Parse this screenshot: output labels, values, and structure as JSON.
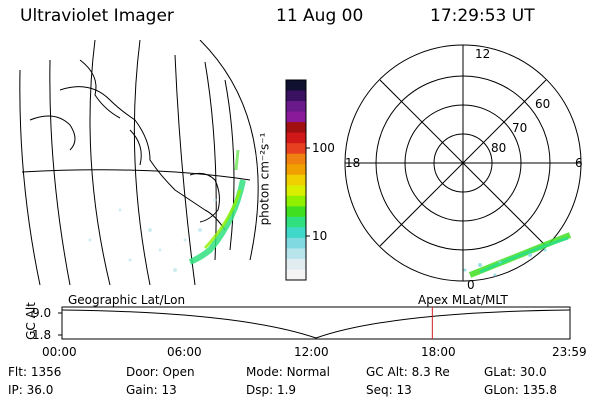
{
  "header": {
    "instrument": "Ultraviolet Imager",
    "date": "11 Aug 00",
    "time": "17:29:53 UT"
  },
  "colorbar": {
    "unit": "photon cm⁻²s⁻¹",
    "tick_labels": [
      "100",
      "10"
    ],
    "colors": [
      "#101030",
      "#3a1060",
      "#6a1a8a",
      "#8a1a9a",
      "#a01010",
      "#d01818",
      "#e64020",
      "#f08010",
      "#f0a000",
      "#f0d000",
      "#d8f000",
      "#90f000",
      "#40e020",
      "#30e080",
      "#40d8c8",
      "#80d8e0",
      "#b8e4ec",
      "#e0ecf0",
      "#f4f4f4"
    ]
  },
  "polar_plot": {
    "mlt_labels": {
      "top": "12",
      "left": "18",
      "right": "6",
      "bottom": "0"
    },
    "mlat_labels": [
      "60",
      "70",
      "80"
    ]
  },
  "timeline": {
    "ylabel": "GC Alt",
    "y_ticks": [
      "9.0",
      "1.8"
    ],
    "left_caption": "Geographic Lat/Lon",
    "right_caption": "Apex MLat/MLT",
    "x_ticks": [
      "00:00",
      "06:00",
      "12:00",
      "18:00",
      "23:59"
    ],
    "marker_time_fraction": 0.729,
    "marker_color": "#d02020"
  },
  "info": {
    "row1": [
      {
        "label": "Flt:",
        "value": "1356"
      },
      {
        "label": "Door:",
        "value": "Open"
      },
      {
        "label": "Mode:",
        "value": "Normal"
      },
      {
        "label": "GC Alt:",
        "value": "8.3 Re"
      },
      {
        "label": "GLat:",
        "value": "30.0"
      }
    ],
    "row2": [
      {
        "label": "IP:",
        "value": "36.0"
      },
      {
        "label": "Gain:",
        "value": "13"
      },
      {
        "label": "Dsp:",
        "value": "1.9"
      },
      {
        "label": "Seq:",
        "value": "13"
      },
      {
        "label": "GLon:",
        "value": "135.8"
      }
    ]
  }
}
